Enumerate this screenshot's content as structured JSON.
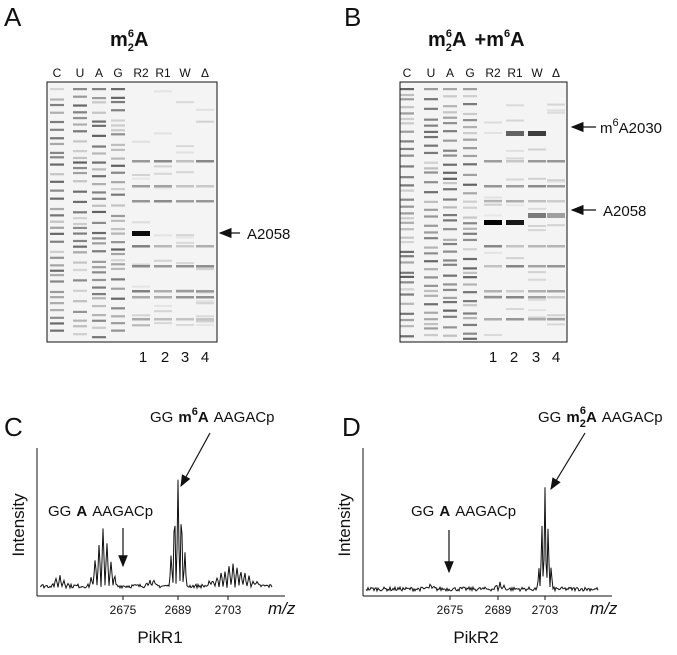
{
  "panels": [
    {
      "letter": "A",
      "title": {
        "mod": "m",
        "sub": "2",
        "sup": "6",
        "base": "A"
      },
      "lanes": [
        "C",
        "U",
        "A",
        "G",
        "R2",
        "R1",
        "W",
        "Δ"
      ],
      "lane_numbers": [
        1,
        2,
        3,
        4
      ],
      "bands": [
        {
          "label": "A2058"
        }
      ]
    },
    {
      "letter": "B",
      "title": {
        "mod": "m",
        "sub": "2",
        "sup": "6",
        "base": "A",
        "join": "+",
        "mod2": "m",
        "sup2": "6",
        "base2": "A"
      },
      "lanes": [
        "C",
        "U",
        "A",
        "G",
        "R2",
        "R1",
        "W",
        "Δ"
      ],
      "lane_numbers": [
        1,
        2,
        3,
        4
      ],
      "bands": [
        {
          "mod": "m",
          "sup": "6",
          "rest": "A2030"
        },
        {
          "label": "A2058"
        }
      ]
    },
    {
      "letter": "C",
      "ylabel": "Intensity",
      "xlabel": "m/z",
      "xticks": [
        2675,
        2689,
        2703
      ],
      "caption": "PikR1",
      "peaks": [
        {
          "prefix": "GG",
          "mod": "m",
          "sup": "6",
          "base": "A",
          "suffix": "AAGACp"
        },
        {
          "prefix": "GG",
          "base": "A",
          "suffix": "AAGACp"
        }
      ]
    },
    {
      "letter": "D",
      "ylabel": "Intensity",
      "xlabel": "m/z",
      "xticks": [
        2675,
        2689,
        2703
      ],
      "caption": "PikR2",
      "peaks": [
        {
          "prefix": "GG",
          "mod": "m",
          "sub": "2",
          "sup": "6",
          "base": "A",
          "suffix": "AAGACp"
        },
        {
          "prefix": "GG",
          "base": "A",
          "suffix": "AAGACp"
        }
      ]
    }
  ]
}
